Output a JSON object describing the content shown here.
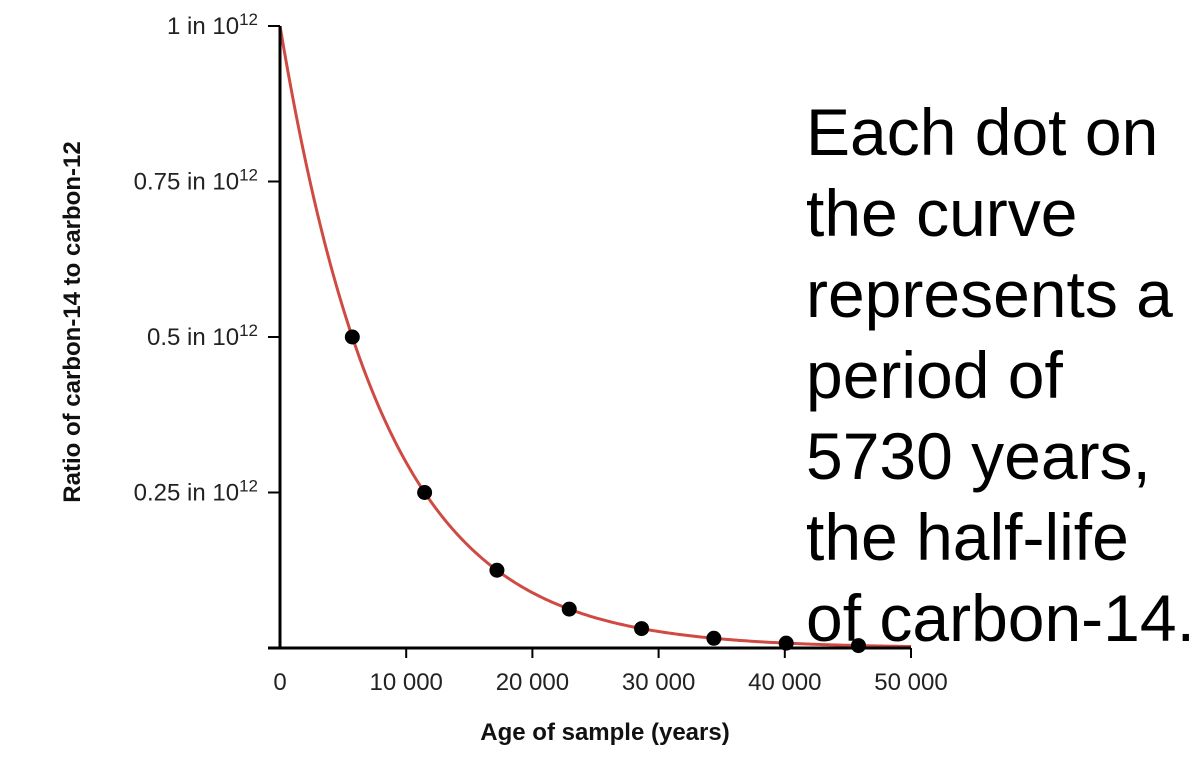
{
  "chart_data": {
    "type": "line",
    "xlabel": "Age of sample (years)",
    "ylabel": "Ratio of carbon-14 to carbon-12",
    "x_ticks": [
      {
        "value": 0,
        "label": "0"
      },
      {
        "value": 10000,
        "label": "10 000"
      },
      {
        "value": 20000,
        "label": "20 000"
      },
      {
        "value": 30000,
        "label": "30 000"
      },
      {
        "value": 40000,
        "label": "40 000"
      },
      {
        "value": 50000,
        "label": "50 000"
      }
    ],
    "y_ticks": [
      {
        "value": 0.25,
        "base": "0.25 in 10",
        "exp": "12"
      },
      {
        "value": 0.5,
        "base": "0.5 in 10",
        "exp": "12"
      },
      {
        "value": 0.75,
        "base": "0.75 in 10",
        "exp": "12"
      },
      {
        "value": 1,
        "base": "1 in 10",
        "exp": "12"
      }
    ],
    "xlim": [
      0,
      50000
    ],
    "ylim": [
      0,
      1
    ],
    "curve": {
      "initial": 1,
      "half_life": 5730,
      "color": "#d04a44"
    },
    "points": [
      {
        "x": 5730,
        "y": 0.5
      },
      {
        "x": 11460,
        "y": 0.25
      },
      {
        "x": 17190,
        "y": 0.125
      },
      {
        "x": 22920,
        "y": 0.0625
      },
      {
        "x": 28650,
        "y": 0.03125
      },
      {
        "x": 34380,
        "y": 0.015625
      },
      {
        "x": 40110,
        "y": 0.0078125
      },
      {
        "x": 45840,
        "y": 0.00390625
      }
    ],
    "point_color": "#000000",
    "grid": false
  },
  "annotation": "Each dot on the curve represents a period of 5730 years, the half-life of carbon-14."
}
